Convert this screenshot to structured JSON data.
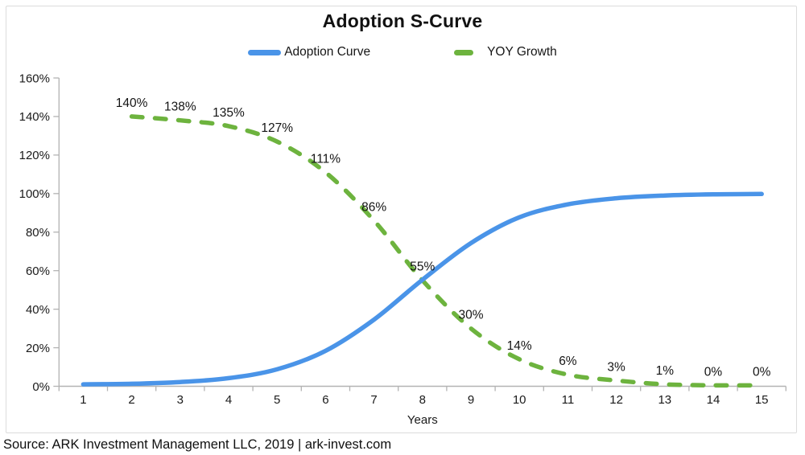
{
  "header": {
    "title": "Adoption S-Curve"
  },
  "legend": {
    "items": [
      {
        "label": "Adoption Curve",
        "color": "#4a94e8",
        "style": "solid"
      },
      {
        "label": "YOY Growth",
        "color": "#6db33e",
        "style": "dashed"
      }
    ]
  },
  "footer": {
    "source": "Source: ARK Investment Management LLC, 2019 | ark-invest.com"
  },
  "chart_data": {
    "type": "line",
    "title": "Adoption S-Curve",
    "xlabel": "Years",
    "ylabel": "",
    "x_tick_values": [
      1,
      2,
      3,
      4,
      5,
      6,
      7,
      8,
      9,
      10,
      11,
      12,
      13,
      14,
      15
    ],
    "x_tick_labels": [
      "1",
      "2",
      "3",
      "4",
      "5",
      "6",
      "7",
      "8",
      "9",
      "10",
      "11",
      "12",
      "13",
      "14",
      "15"
    ],
    "y_tick_values": [
      0,
      20,
      40,
      60,
      80,
      100,
      120,
      140,
      160
    ],
    "y_tick_labels": [
      "0%",
      "20%",
      "40%",
      "60%",
      "80%",
      "100%",
      "120%",
      "140%",
      "160%"
    ],
    "xlim": [
      0.5,
      15.5
    ],
    "ylim": [
      0,
      160
    ],
    "grid": false,
    "legend_position": "top-center",
    "axis_color": "#b3b3b3",
    "series": [
      {
        "name": "Adoption Curve",
        "style": "solid",
        "color": "#4a94e8",
        "x": [
          1,
          2,
          3,
          4,
          5,
          6,
          7,
          8,
          9,
          10,
          11,
          12,
          13,
          14,
          15
        ],
        "values": [
          1,
          1.3,
          2.2,
          4.2,
          8.8,
          18.4,
          34.6,
          55.3,
          74.3,
          87.7,
          94.4,
          97.6,
          99,
          99.6,
          99.8
        ]
      },
      {
        "name": "YOY Growth",
        "style": "dashed",
        "color": "#6db33e",
        "x": [
          2,
          3,
          4,
          5,
          6,
          7,
          8,
          9,
          10,
          11,
          12,
          13,
          14,
          15
        ],
        "values": [
          140,
          138,
          135,
          127,
          111,
          86,
          55,
          30,
          14,
          6,
          3,
          1,
          0.5,
          0.5
        ],
        "point_labels": [
          "140%",
          "138%",
          "135%",
          "127%",
          "111%",
          "86%",
          "55%",
          "30%",
          "14%",
          "6%",
          "3%",
          "1%",
          "0%",
          "0%"
        ]
      }
    ]
  }
}
